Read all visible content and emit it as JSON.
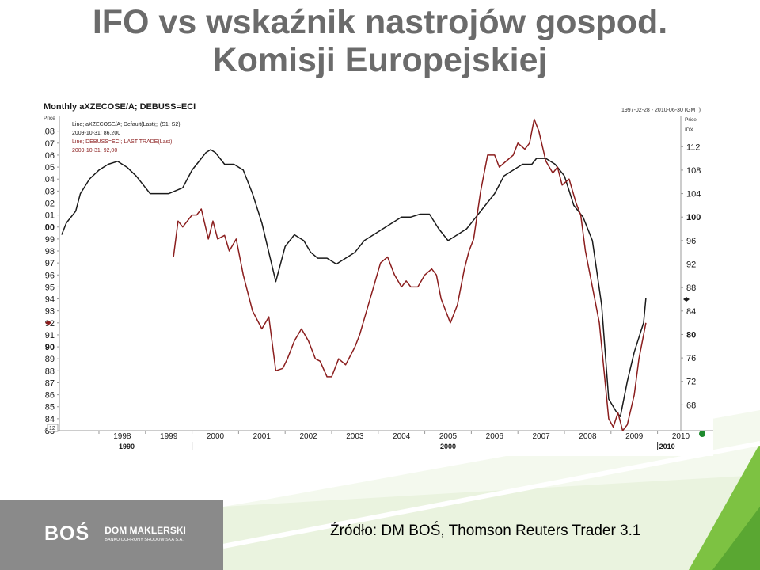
{
  "slide": {
    "title_line1": "IFO vs wskaźnik nastrojów gospod.",
    "title_line2": "Komisji Europejskiej",
    "source": "Źródło: DM BOŚ, Thomson Reuters Trader 3.1",
    "logo": {
      "mark": "BOŚ",
      "name": "DOM MAKLERSKI",
      "tagline": "BANKU OCHRONY ŚRODOWISKA S.A."
    },
    "colors": {
      "title": "#6b6b6b",
      "green_accent": "#7dc242",
      "footer_gray": "#8a8a8a"
    }
  },
  "chart_data": {
    "type": "line",
    "title": "Monthly aXZECOSE/A; DEBUSS=ECI",
    "date_range": "1997-02-28 - 2010-06-30 (GMT)",
    "left_axis_title": "Price",
    "right_axis_title": "Price",
    "right_axis_unit": "IDX",
    "left_axis": {
      "ylim": [
        83,
        109.3
      ],
      "ticks": [
        "83",
        "84",
        "85",
        "86",
        "87",
        "88",
        "89",
        "90",
        "91",
        "92",
        "93",
        "94",
        "95",
        "96",
        "97",
        "98",
        "99",
        "100",
        "101",
        "102",
        "103",
        "104",
        "105",
        "106",
        "107",
        "108"
      ],
      "bold_ticks": [
        "90",
        "100"
      ],
      "last_value_label": "92"
    },
    "right_axis": {
      "ylim": [
        63.6,
        117.3
      ],
      "ticks": [
        "68",
        "72",
        "76",
        "80",
        "84",
        "88",
        "92",
        "96",
        "100",
        "104",
        "108",
        "112"
      ],
      "bold_ticks": [
        "80",
        "100"
      ]
    },
    "x_axis": {
      "xlim": [
        1997.15,
        2010.5
      ],
      "year_labels": [
        "1998",
        "1999",
        "2000",
        "2001",
        "2002",
        "2003",
        "2004",
        "2005",
        "2006",
        "2007",
        "2008",
        "2009",
        "2010"
      ],
      "decade_labels": [
        "1990",
        "2000",
        "2010"
      ],
      "corner_label": "12"
    },
    "legend": [
      {
        "line1": "Line; aXZECOSE/A; Default(Last);; (S1; S2)",
        "line2": "2009-10-31; 86,200",
        "color": "#1a1a1a"
      },
      {
        "line1": "Line; DEBUSS=ECI; LAST TRADE(Last);",
        "line2": "2009-10-31; 92,00",
        "color": "#8b1e1e"
      }
    ],
    "series": [
      {
        "name": "aXZECOSE/A",
        "axis": "right",
        "color": "#1a1a1a",
        "x": [
          1997.2,
          1997.3,
          1997.5,
          1997.6,
          1997.8,
          1998.0,
          1998.2,
          1998.4,
          1998.6,
          1998.8,
          1999.0,
          1999.1,
          1999.3,
          1999.5,
          1999.8,
          2000.0,
          2000.2,
          2000.3,
          2000.4,
          2000.5,
          2000.6,
          2000.7,
          2000.9,
          2001.1,
          2001.3,
          2001.5,
          2001.65,
          2001.8,
          2002.0,
          2002.2,
          2002.4,
          2002.55,
          2002.7,
          2002.9,
          2003.1,
          2003.3,
          2003.5,
          2003.7,
          2003.9,
          2004.1,
          2004.3,
          2004.5,
          2004.7,
          2004.9,
          2005.1,
          2005.3,
          2005.5,
          2005.7,
          2005.9,
          2006.1,
          2006.3,
          2006.5,
          2006.7,
          2006.9,
          2007.1,
          2007.3,
          2007.4,
          2007.6,
          2007.8,
          2008.0,
          2008.2,
          2008.4,
          2008.6,
          2008.8,
          2008.95,
          2009.1,
          2009.2,
          2009.35,
          2009.5,
          2009.7,
          2009.75
        ],
        "values": [
          97,
          99,
          101,
          104,
          106.5,
          108,
          109,
          109.5,
          108.5,
          107,
          105,
          104,
          104,
          104,
          105,
          108,
          110,
          111,
          111.5,
          111,
          110,
          109,
          109,
          108,
          104,
          99,
          94,
          89,
          95,
          97,
          96,
          94,
          93,
          93,
          92,
          93,
          94,
          96,
          97,
          98,
          99,
          100,
          100,
          100.5,
          100.5,
          98,
          96,
          97,
          98,
          100,
          102,
          104,
          107,
          108,
          109,
          109,
          110,
          110,
          109,
          107,
          102,
          100,
          96,
          85,
          69,
          67,
          66,
          72,
          77,
          82,
          86.2
        ]
      },
      {
        "name": "DEBUSS=ECI",
        "axis": "left",
        "color": "#8b1e1e",
        "x": [
          1999.6,
          1999.7,
          1999.8,
          2000.0,
          2000.1,
          2000.2,
          2000.35,
          2000.45,
          2000.55,
          2000.7,
          2000.8,
          2000.95,
          2001.1,
          2001.3,
          2001.5,
          2001.65,
          2001.8,
          2001.95,
          2002.05,
          2002.2,
          2002.35,
          2002.5,
          2002.65,
          2002.75,
          2002.9,
          2003.0,
          2003.15,
          2003.3,
          2003.5,
          2003.6,
          2003.75,
          2003.9,
          2004.05,
          2004.2,
          2004.35,
          2004.5,
          2004.6,
          2004.7,
          2004.85,
          2005.0,
          2005.15,
          2005.25,
          2005.35,
          2005.55,
          2005.7,
          2005.85,
          2005.95,
          2006.05,
          2006.2,
          2006.35,
          2006.5,
          2006.6,
          2006.75,
          2006.9,
          2007.0,
          2007.15,
          2007.25,
          2007.35,
          2007.45,
          2007.6,
          2007.75,
          2007.85,
          2007.95,
          2008.1,
          2008.25,
          2008.35,
          2008.45,
          2008.6,
          2008.75,
          2008.85,
          2008.95,
          2009.05,
          2009.15,
          2009.25,
          2009.35,
          2009.5,
          2009.6,
          2009.75
        ],
        "values": [
          97.5,
          100.5,
          100,
          101,
          101,
          101.5,
          99,
          100.5,
          99,
          99.3,
          98,
          99,
          96,
          93,
          91.5,
          92.5,
          88,
          88.2,
          89,
          90.5,
          91.5,
          90.5,
          89,
          88.8,
          87.5,
          87.5,
          89,
          88.5,
          90,
          91,
          93,
          95,
          97,
          97.5,
          96,
          95,
          95.5,
          95,
          95,
          96,
          96.5,
          96,
          94,
          92,
          93.5,
          96.5,
          98,
          99,
          103,
          106,
          106,
          105,
          105.5,
          106,
          107,
          106.5,
          107,
          109,
          108,
          105.5,
          104.5,
          105,
          103.5,
          104,
          102,
          101,
          98,
          95,
          92,
          88,
          84,
          83.3,
          84.5,
          83,
          83.5,
          86,
          89,
          92
        ]
      }
    ],
    "grid": false,
    "legend_position": "top-left"
  }
}
